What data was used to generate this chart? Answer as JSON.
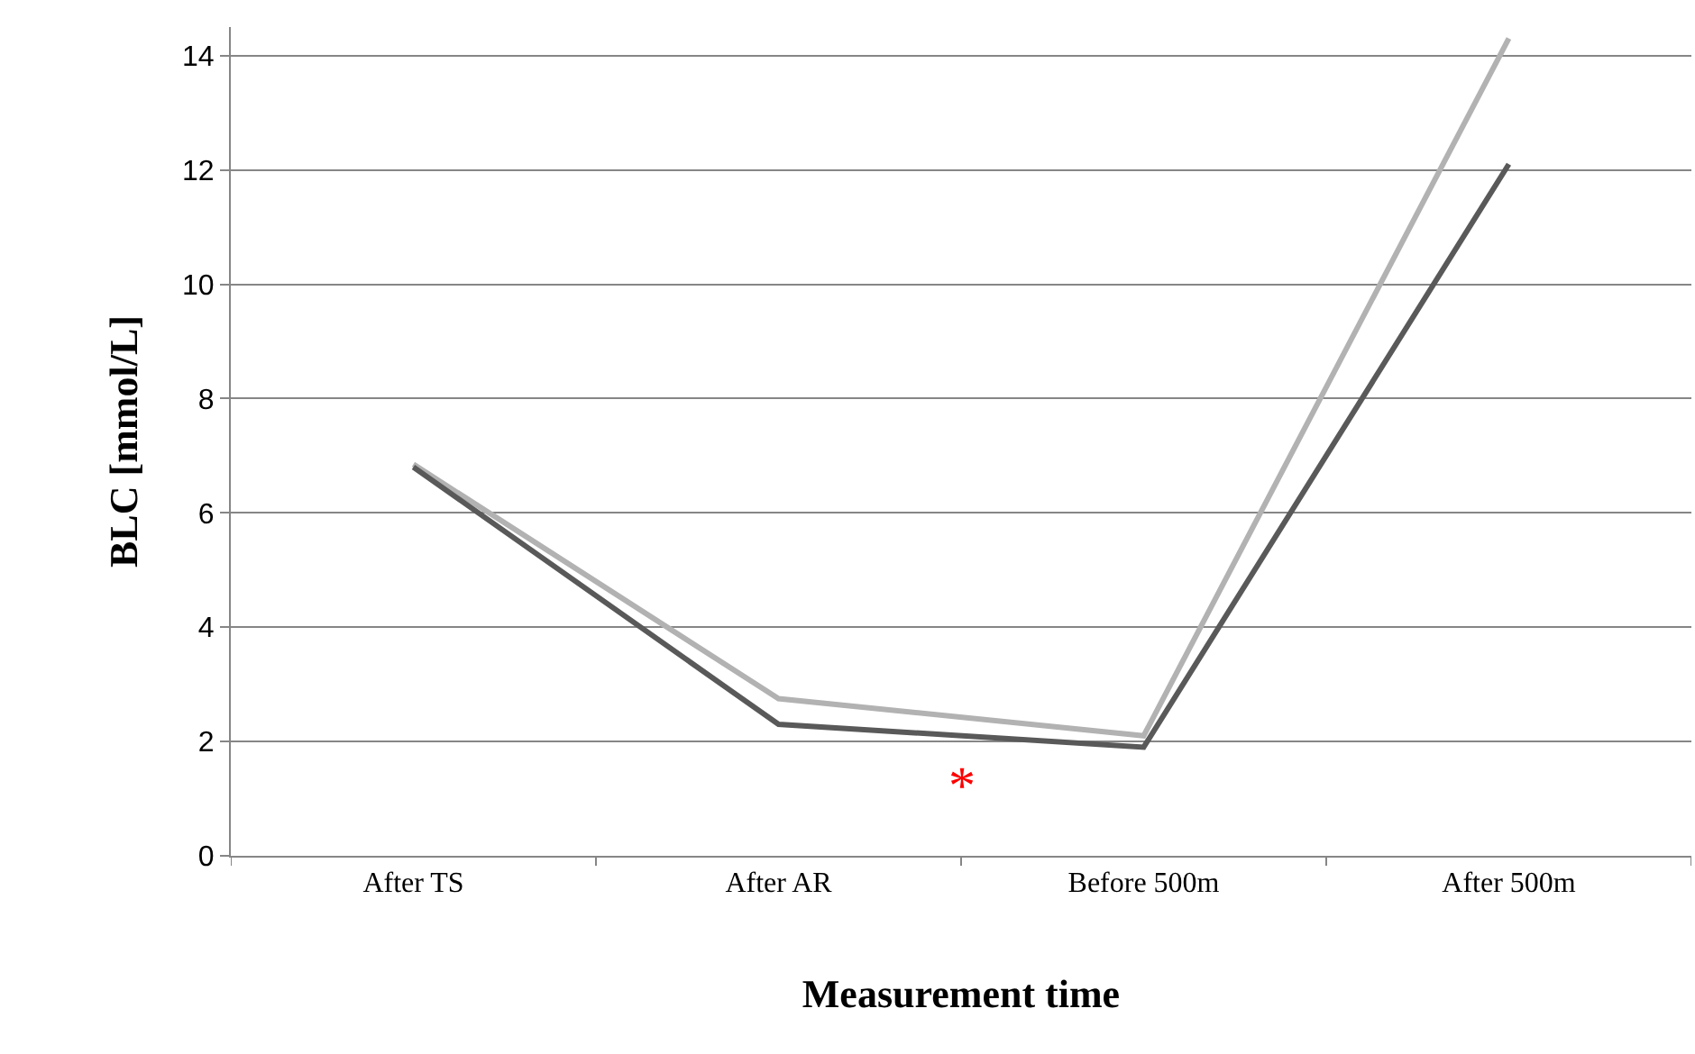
{
  "chart_data": {
    "type": "line",
    "xlabel": "Measurement time",
    "ylabel": "BLC [mmol/L]",
    "categories": [
      "After TS",
      "After AR",
      "Before 500m",
      "After 500m"
    ],
    "series": [
      {
        "color": "#b2b2b2",
        "values": [
          6.85,
          2.75,
          2.1,
          14.3
        ]
      },
      {
        "color": "#595959",
        "values": [
          6.8,
          2.3,
          1.9,
          12.1
        ]
      }
    ],
    "ylim": [
      0,
      14.5
    ],
    "yticks": [
      0,
      2,
      4,
      6,
      8,
      10,
      12,
      14
    ],
    "grid": "y",
    "marker": "none",
    "line_style": "solid",
    "annotations": [
      "*"
    ]
  }
}
